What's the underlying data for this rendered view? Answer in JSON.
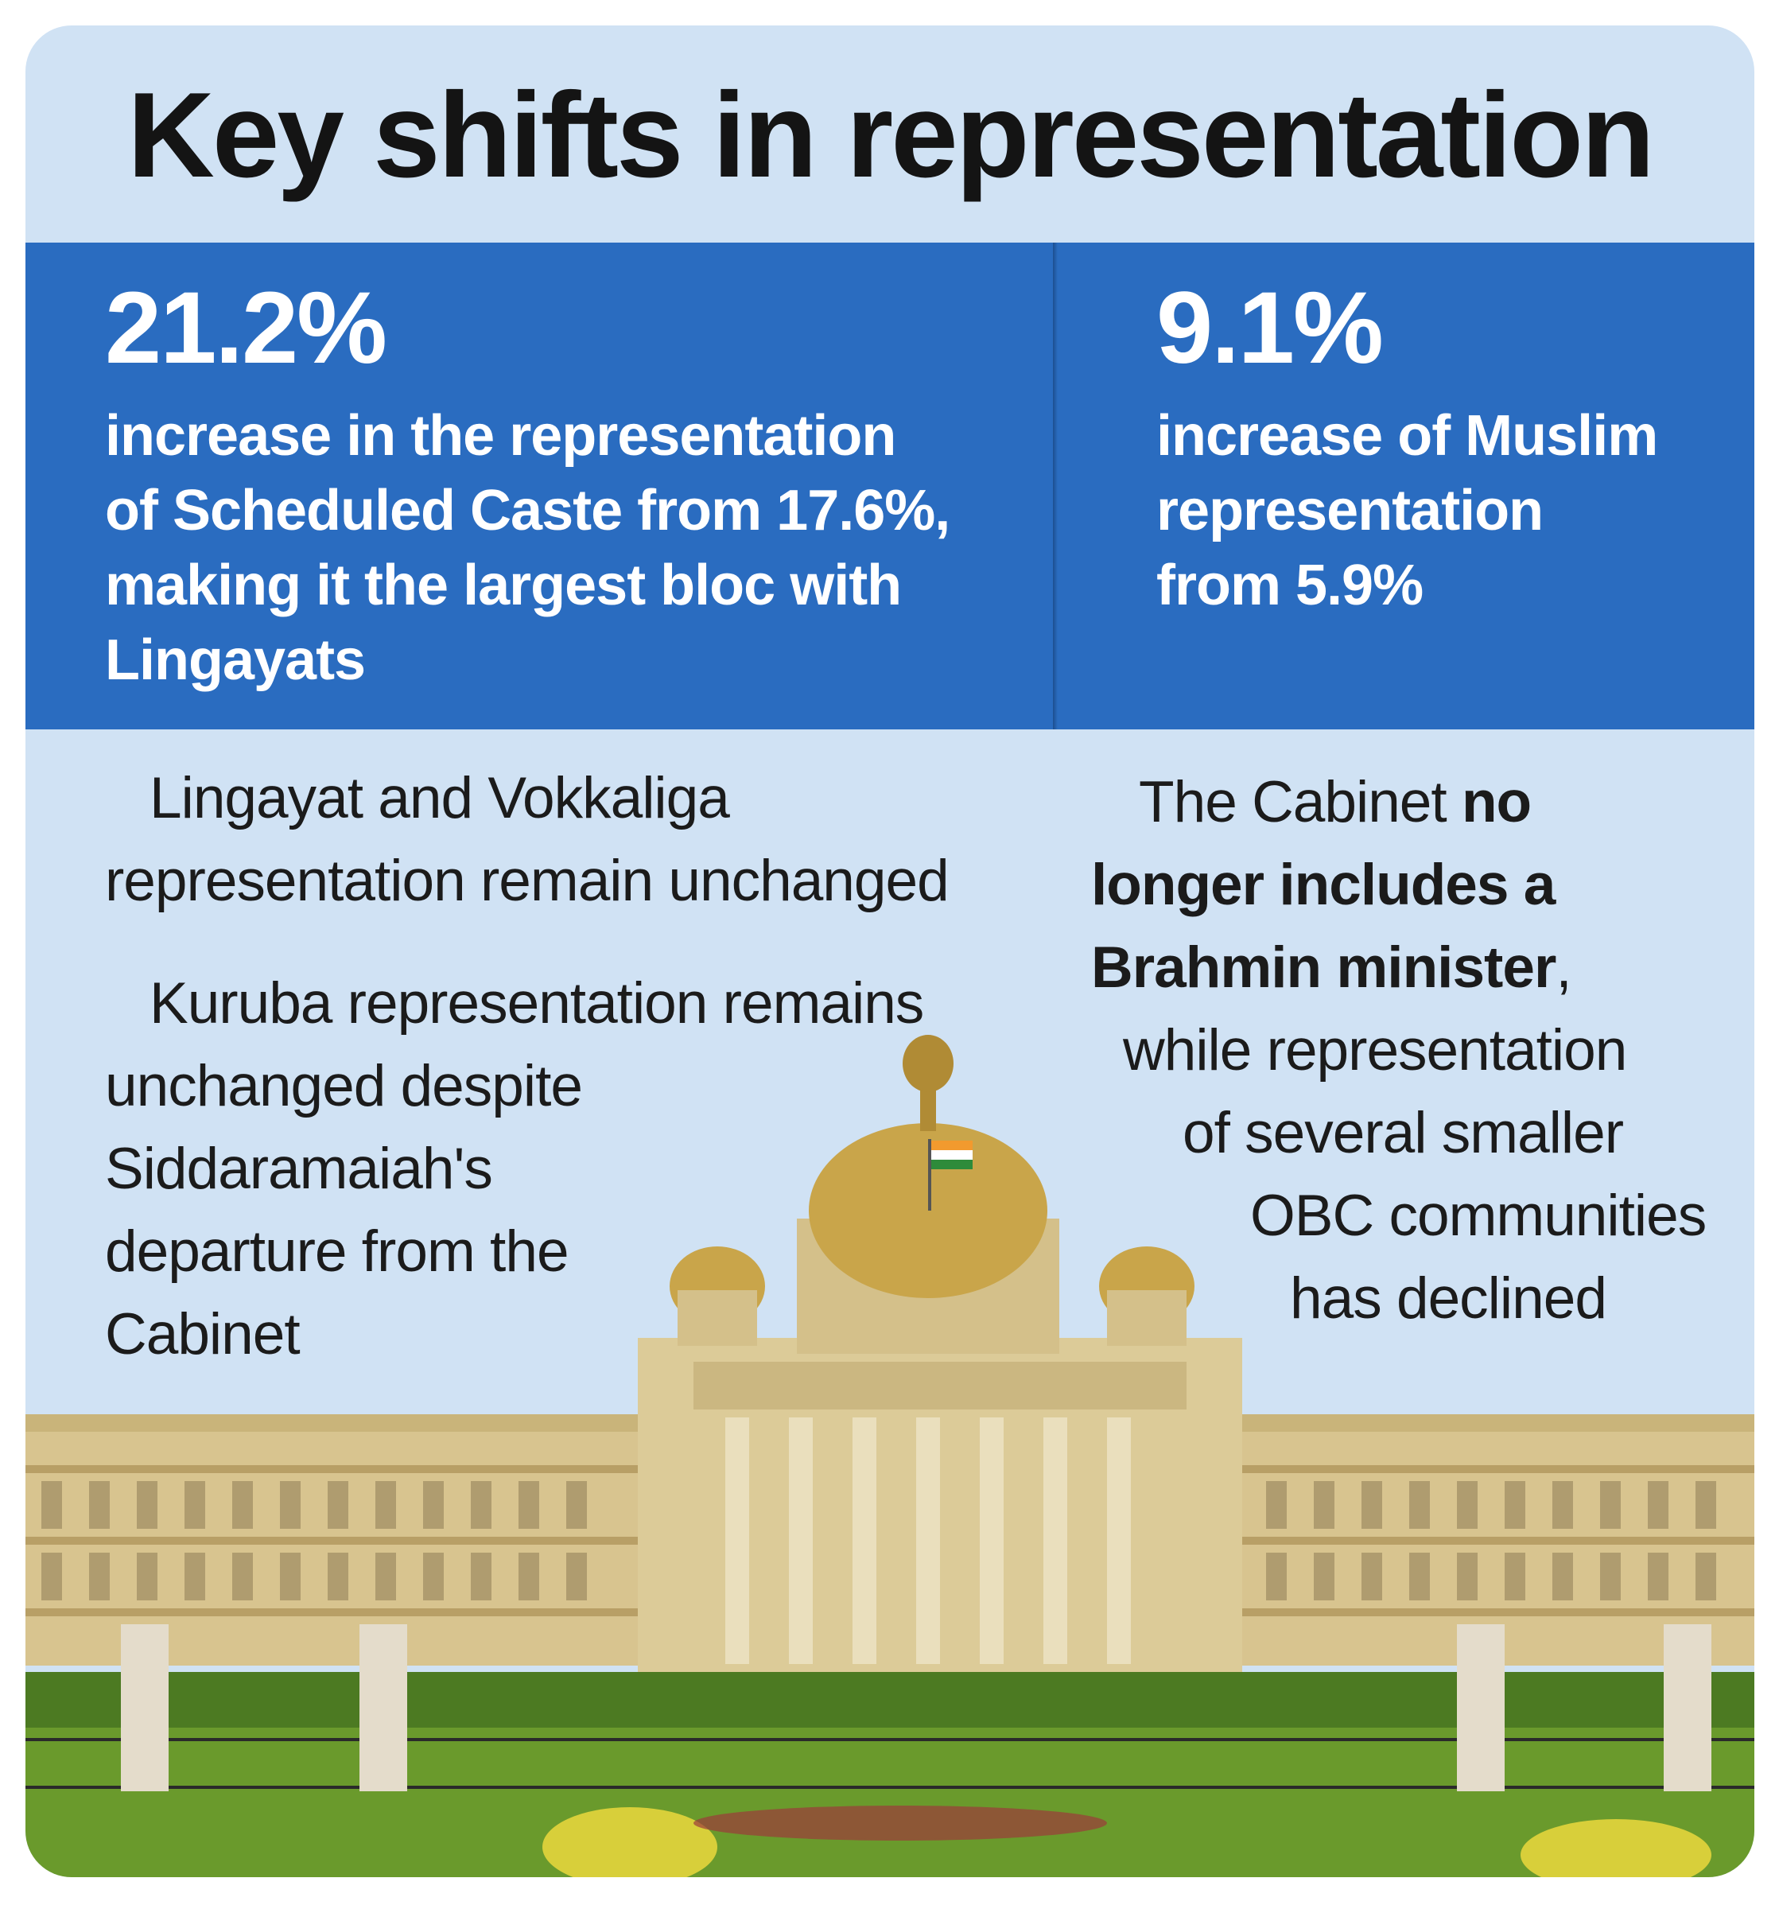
{
  "title": "Key shifts in representation",
  "stats": [
    {
      "value": "21.2%",
      "description_lines": [
        "increase in the representation",
        "of Scheduled Caste from 17.6%,",
        "making it the largest bloc with",
        "Lingayats"
      ]
    },
    {
      "value": "9.1%",
      "description_lines": [
        "increase of Muslim",
        "representation",
        "from 5.9%"
      ]
    }
  ],
  "notes": {
    "lingayat_vokkaliga": [
      "Lingayat and Vokkaliga",
      "representation remain unchanged"
    ],
    "kuruba": [
      "Kuruba representation remains",
      "unchanged despite",
      "Siddaramaiah's",
      "departure from the",
      "Cabinet"
    ],
    "cabinet": {
      "line1_regular": "The Cabinet ",
      "line1_bold": "no",
      "line2_bold": "longer includes a",
      "line3_bold": "Brahmin minister",
      "line3_regular": ",",
      "lines_rest": [
        "while representation",
        "of several smaller",
        "OBC communities",
        "has declined"
      ]
    }
  },
  "image": {
    "subject": "legislature-building-with-flag",
    "colors": {
      "sky": "#d0e2f4",
      "stone": "#d8c48f",
      "dome": "#c9a54a",
      "lawn": "#6a9a2c",
      "band": "#2a6cc0"
    }
  }
}
